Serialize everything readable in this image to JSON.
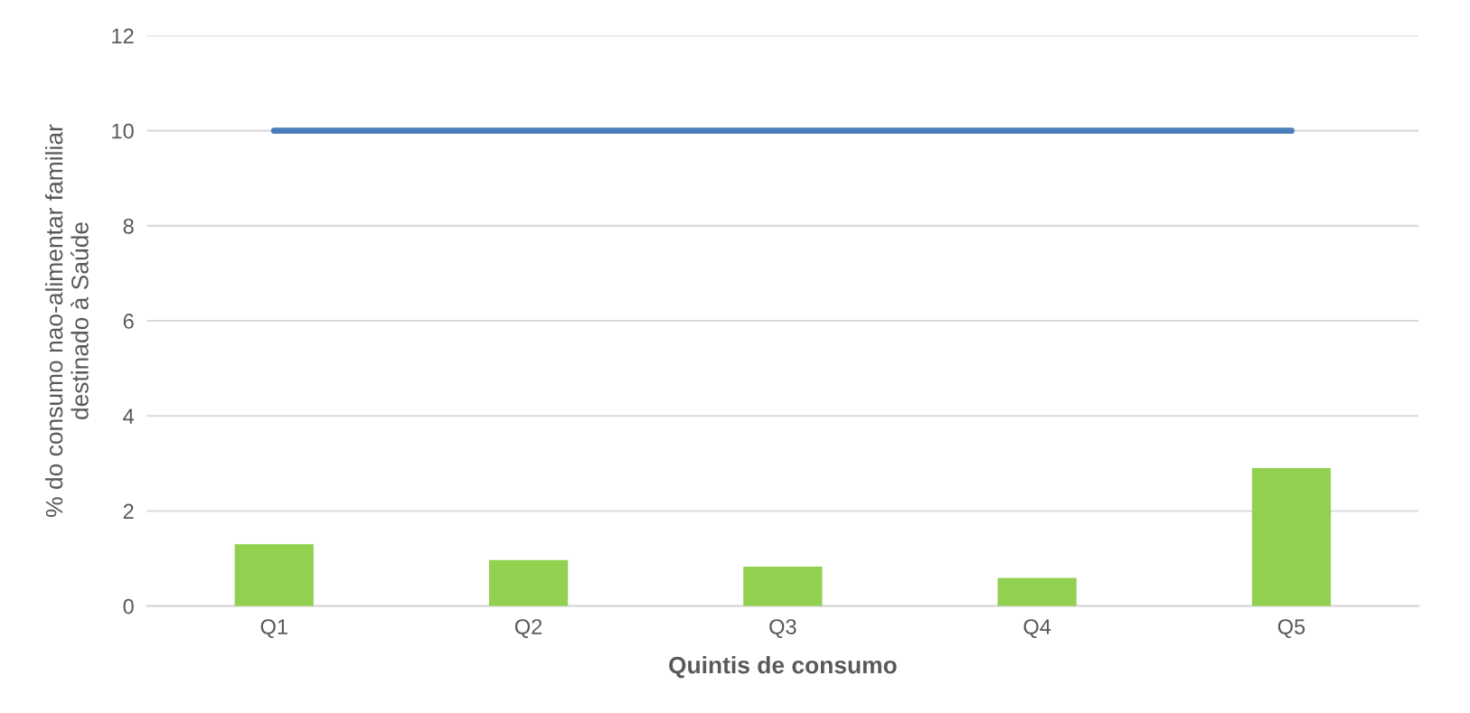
{
  "chart_data": {
    "type": "bar",
    "xlabel": "Quintis de consumo",
    "ylabel": "% do consumo nao-alimentar familiar\ndestinado à Saúde",
    "categories": [
      "Q1",
      "Q2",
      "Q3",
      "Q4",
      "Q5"
    ],
    "series": [
      {
        "color": "#92d050",
        "values": [
          1.3,
          0.97,
          0.83,
          0.59,
          2.9
        ]
      },
      {
        "type": "line",
        "color": "#4a7ebb",
        "values": [
          10,
          10,
          10,
          10,
          10
        ]
      }
    ],
    "ylim": [
      0,
      12
    ],
    "yticks": [
      0,
      2,
      4,
      6,
      8,
      10,
      12
    ],
    "grid": "y",
    "legend": false
  }
}
